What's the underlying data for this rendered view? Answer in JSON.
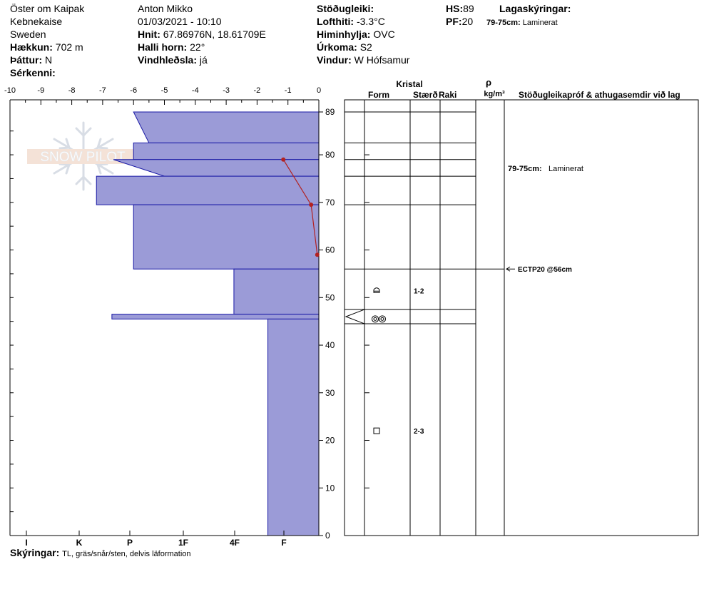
{
  "header": {
    "location": "Öster om Kaipak",
    "region": "Kebnekaise",
    "country": "Sweden",
    "elevation_label": "Hækkun:",
    "elevation_value": "702 m",
    "aspect_label": "Þáttur:",
    "aspect_value": "N",
    "features_label": "Sérkenni:",
    "observer": "Anton Mikko",
    "datetime": "01/03/2021 - 10:10",
    "coords_label": "Hnit:",
    "coords_value": "67.86976N, 18.61709E",
    "slope_label": "Halli horn:",
    "slope_value": "22°",
    "wind_loading_label": "Vindhleðsla:",
    "wind_loading_value": "já",
    "stability_label": "Stöðugleiki:",
    "air_temp_label": "Lofthiti:",
    "air_temp_value": "-3.3°C",
    "sky_label": "Himinhylja:",
    "sky_value": "OVC",
    "precip_label": "Úrkoma:",
    "precip_value": "S2",
    "wind_label": "Vindur:",
    "wind_value": "W Hófsamur",
    "hs_label": "HS:",
    "hs_value": "89",
    "pf_label": "PF:",
    "pf_value": "20",
    "layer_notes_label": "Lagaskýringar:",
    "layer_note_range": "79-75cm:",
    "layer_note_text": "Laminerat"
  },
  "watermark": "SNOW PILOT",
  "footer": {
    "label": "Skýringar:",
    "text": "TL, gräs/snår/sten, delvis läformation"
  },
  "table": {
    "kristal": "Kristal",
    "form": "Form",
    "size": "Stærð",
    "moisture": "Raki",
    "rho": "ρ",
    "density_unit": "kg/m³",
    "comments": "Stöðugleikapróf & athugasemdir við lag",
    "note_range": "79-75cm:",
    "note_text": "Laminerat",
    "test_result": "ECTP20 @56cm",
    "grain_size_1": "1-2",
    "grain_size_2": "2-3"
  },
  "chart_data": {
    "type": "snow-profile",
    "temp_axis": {
      "min": -10,
      "max": 0,
      "ticks": [
        "-10",
        "-9",
        "-8",
        "-7",
        "-6",
        "-5",
        "-4",
        "-3",
        "-2",
        "-1",
        "0"
      ]
    },
    "height_axis": {
      "min": 0,
      "max": 89,
      "ticks": [
        0,
        10,
        20,
        30,
        40,
        50,
        60,
        70,
        80,
        89
      ]
    },
    "hardness_axis": {
      "ticks": [
        "I",
        "K",
        "P",
        "1F",
        "4F",
        "F"
      ]
    },
    "hardness_layers": [
      {
        "top": 89,
        "bottom": 82.5,
        "hardness_top": -6,
        "hardness_bottom": -5.5
      },
      {
        "top": 82.5,
        "bottom": 79,
        "hardness_top": -6,
        "hardness_bottom": -6
      },
      {
        "top": 79,
        "bottom": 75.5,
        "hardness_top": -6.65,
        "hardness_bottom": -5
      },
      {
        "top": 75.5,
        "bottom": 69.5,
        "hardness_top": -7.2,
        "hardness_bottom": -7.2
      },
      {
        "top": 69.5,
        "bottom": 56,
        "hardness_top": -6,
        "hardness_bottom": -6
      },
      {
        "top": 56,
        "bottom": 46.5,
        "hardness_top": -2.75,
        "hardness_bottom": -2.75
      },
      {
        "top": 46.5,
        "bottom": 45.5,
        "hardness_top": -6.7,
        "hardness_bottom": -6.7
      },
      {
        "top": 45.5,
        "bottom": 0,
        "hardness_top": -1.65,
        "hardness_bottom": -1.65
      }
    ],
    "layer_boundaries": [
      89,
      82.5,
      79,
      75.5,
      69.5,
      56,
      47.5,
      44.5
    ],
    "temperature_profile": [
      {
        "height": 79,
        "temp": -1.15
      },
      {
        "height": 69.5,
        "temp": -0.25
      },
      {
        "height": 59,
        "temp": -0.05
      }
    ],
    "crystals": [
      {
        "height": 51.5,
        "form": "depth-hoar-cup",
        "size": "1-2"
      },
      {
        "height": 45.5,
        "form": "melt-freeze-cluster",
        "size": ""
      },
      {
        "height": 22,
        "form": "faceted-square",
        "size": "2-3"
      }
    ],
    "test_height": 56,
    "note_height": 77
  }
}
